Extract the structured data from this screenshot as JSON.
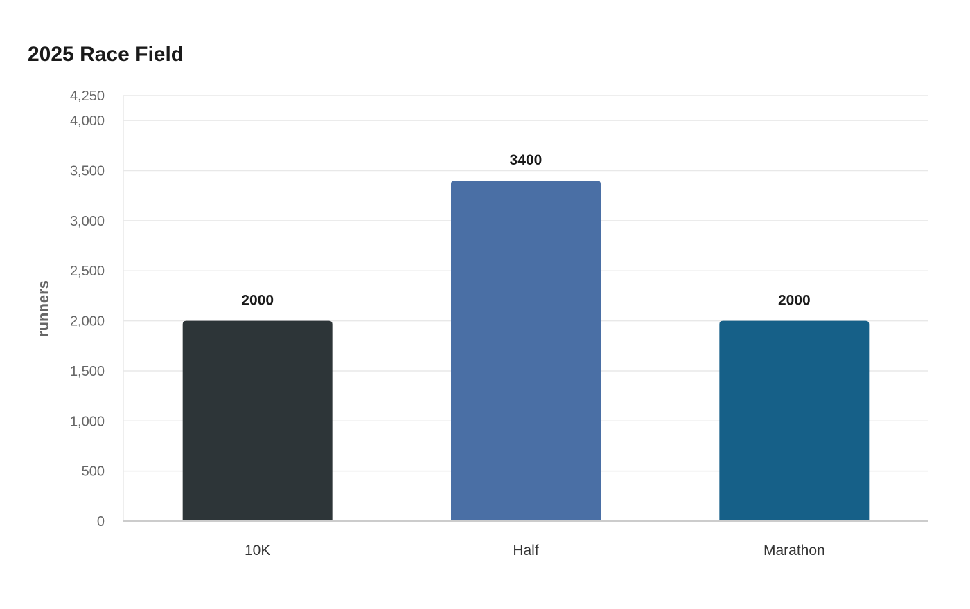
{
  "chart_data": {
    "type": "bar",
    "title": "2025 Race Field",
    "xlabel": "",
    "ylabel": "runners",
    "categories": [
      "10K",
      "Half",
      "Marathon"
    ],
    "values": [
      2000,
      3400,
      2000
    ],
    "data_labels": [
      "2000",
      "3400",
      "2000"
    ],
    "bar_colors": [
      "#2d3538",
      "#4a6fa5",
      "#166088"
    ],
    "ylim": [
      0,
      4250
    ],
    "yticks": [
      0,
      500,
      1000,
      1500,
      2000,
      2500,
      3000,
      3500,
      4000,
      4250
    ],
    "ytick_labels": [
      "0",
      "500",
      "1,000",
      "1,500",
      "2,000",
      "2,500",
      "3,000",
      "3,500",
      "4,000",
      "4,250"
    ],
    "grid": true,
    "legend": "none"
  },
  "colors": {
    "grid": "#e8e8e8",
    "axis": "#cccccc",
    "tick_text": "#666666",
    "category_text": "#333333",
    "label_text": "#1a1a1a"
  }
}
